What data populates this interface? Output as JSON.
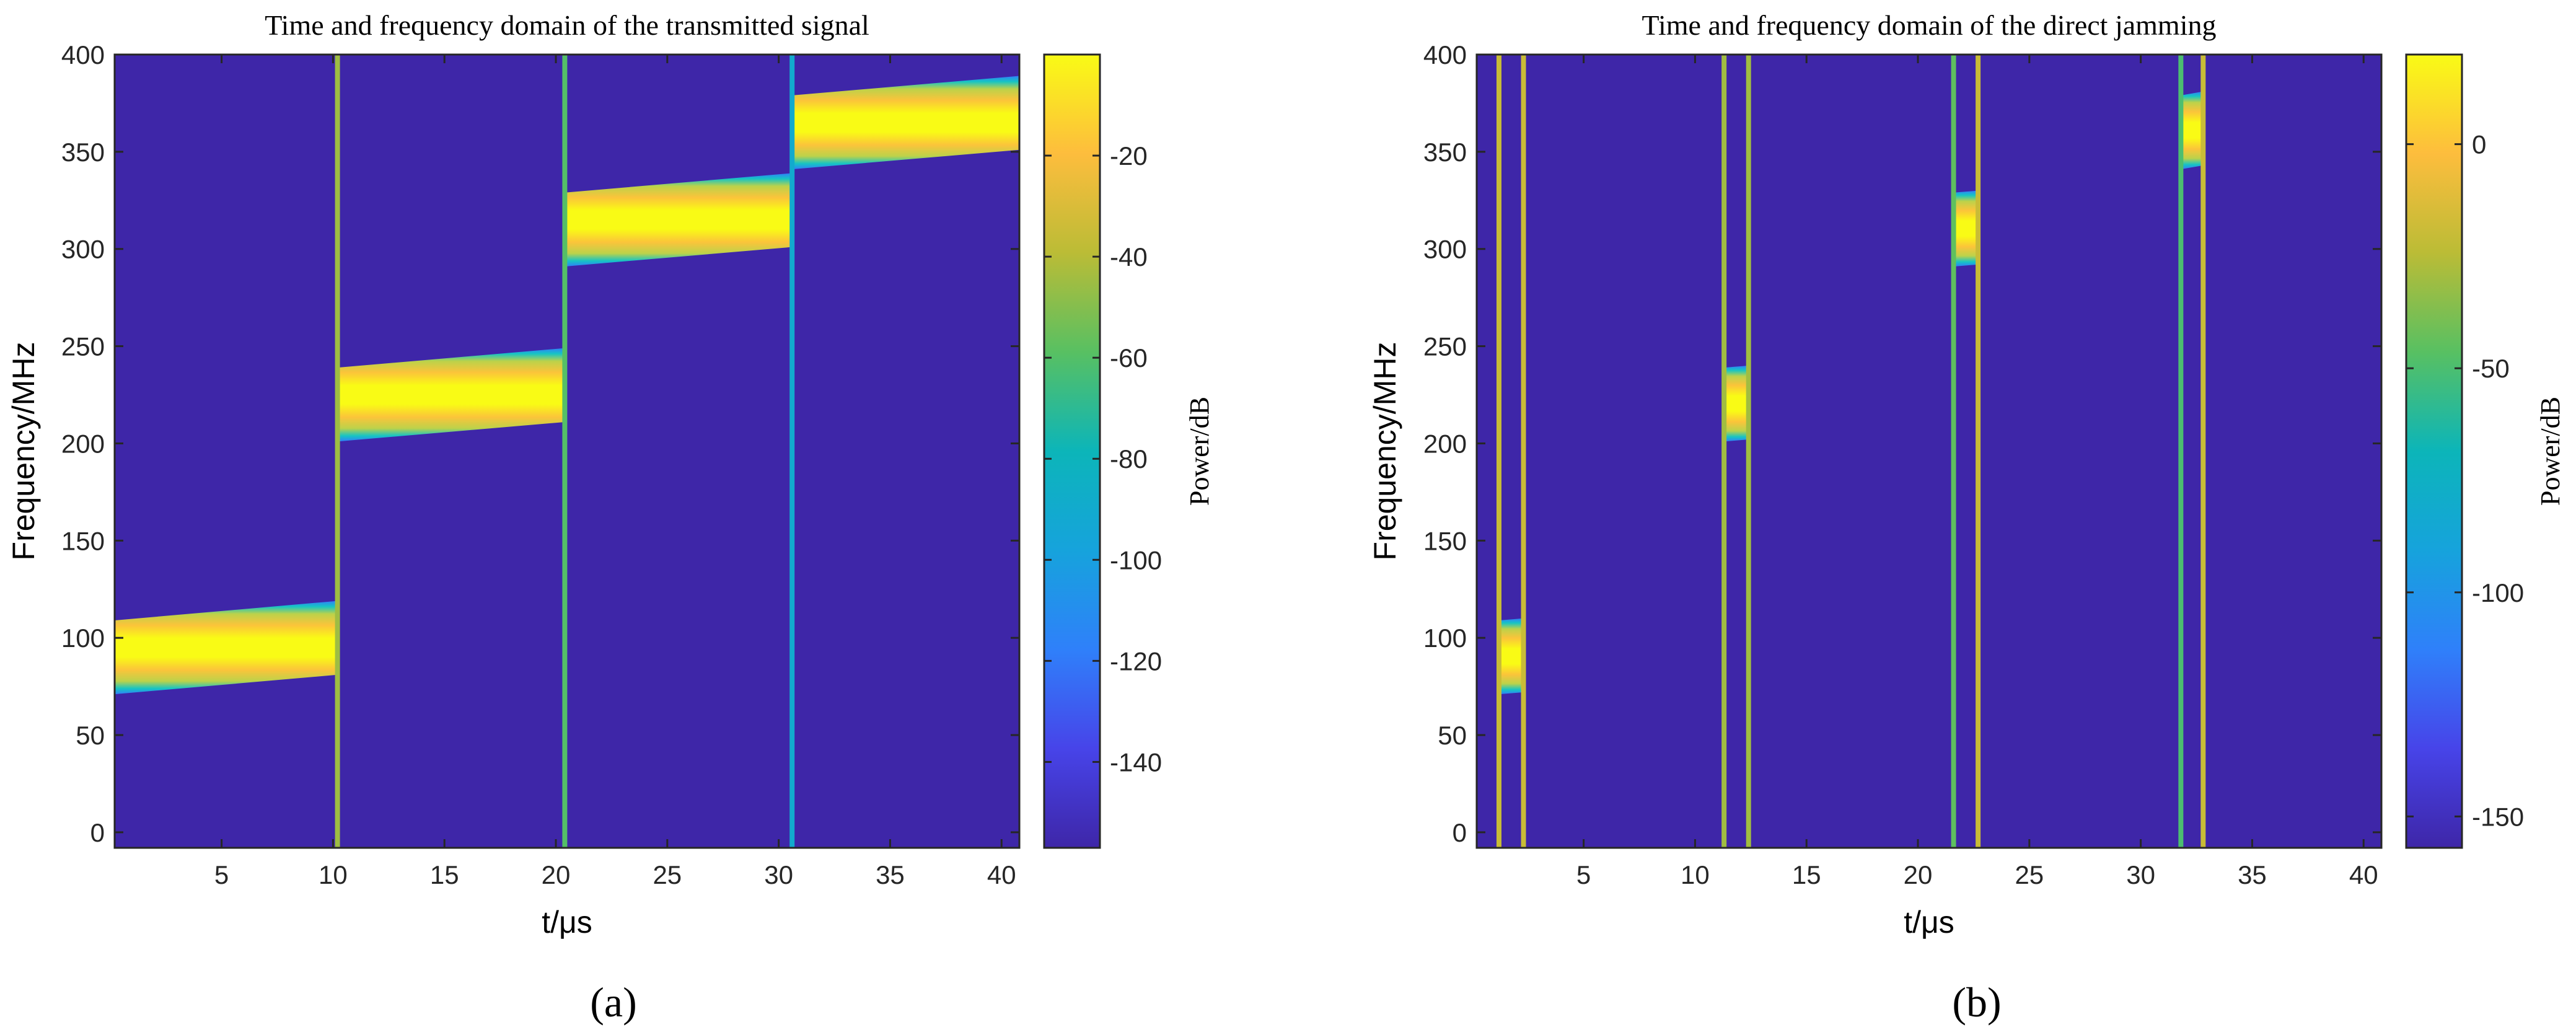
{
  "chart_data": [
    {
      "type": "heatmap",
      "panel_label": "(a)",
      "title": "Time and frequency domain of the transmitted signal",
      "xlabel": "t/μs",
      "ylabel": "Frequency/MHz",
      "colorbar_label": "Power/dB",
      "xlim": [
        0.2,
        40.8
      ],
      "ylim": [
        -8,
        400
      ],
      "xticks": [
        5,
        10,
        15,
        20,
        25,
        30,
        35,
        40
      ],
      "yticks": [
        0,
        50,
        100,
        150,
        200,
        250,
        300,
        350,
        400
      ],
      "clim": [
        -157,
        0
      ],
      "colorbar_ticks": [
        -140,
        -120,
        -100,
        -80,
        -60,
        -40,
        -20
      ],
      "background_dB": -157,
      "bands": [
        {
          "t_start": 0.2,
          "t_end": 10.2,
          "f_center_start": 90,
          "f_center_end": 100,
          "bandwidth": 38
        },
        {
          "t_start": 10.2,
          "t_end": 20.4,
          "f_center_start": 220,
          "f_center_end": 230,
          "bandwidth": 38
        },
        {
          "t_start": 20.4,
          "t_end": 30.6,
          "f_center_start": 310,
          "f_center_end": 320,
          "bandwidth": 38
        },
        {
          "t_start": 30.6,
          "t_end": 40.8,
          "f_center_start": 360,
          "f_center_end": 370,
          "bandwidth": 38
        }
      ],
      "vertical_lines": [
        {
          "t": 10.2,
          "dB": -45
        },
        {
          "t": 20.4,
          "dB": -60
        },
        {
          "t": 30.6,
          "dB": -90
        }
      ]
    },
    {
      "type": "heatmap",
      "panel_label": "(b)",
      "title": "Time and frequency domain of the direct jamming",
      "xlabel": "t/μs",
      "ylabel": "Frequency/MHz",
      "colorbar_label": "Power/dB",
      "xlim": [
        0.2,
        40.8
      ],
      "ylim": [
        -8,
        400
      ],
      "xticks": [
        5,
        10,
        15,
        20,
        25,
        30,
        35,
        40
      ],
      "yticks": [
        0,
        50,
        100,
        150,
        200,
        250,
        300,
        350,
        400
      ],
      "clim": [
        -157,
        20
      ],
      "colorbar_ticks": [
        -150,
        -100,
        -50,
        0
      ],
      "background_dB": -157,
      "bands": [
        {
          "t_start": 1.2,
          "t_end": 2.3,
          "f_center_start": 90,
          "f_center_end": 91,
          "bandwidth": 38
        },
        {
          "t_start": 11.3,
          "t_end": 12.4,
          "f_center_start": 220,
          "f_center_end": 221,
          "bandwidth": 38
        },
        {
          "t_start": 21.6,
          "t_end": 22.7,
          "f_center_start": 310,
          "f_center_end": 311,
          "bandwidth": 38
        },
        {
          "t_start": 31.8,
          "t_end": 32.8,
          "f_center_start": 360,
          "f_center_end": 362,
          "bandwidth": 38
        }
      ],
      "vertical_lines": [
        {
          "t": 1.2,
          "dB": -20
        },
        {
          "t": 2.3,
          "dB": -20
        },
        {
          "t": 11.3,
          "dB": -30
        },
        {
          "t": 12.4,
          "dB": -30
        },
        {
          "t": 21.6,
          "dB": -45
        },
        {
          "t": 22.7,
          "dB": -20
        },
        {
          "t": 31.8,
          "dB": -50
        },
        {
          "t": 32.8,
          "dB": -20
        }
      ]
    }
  ]
}
